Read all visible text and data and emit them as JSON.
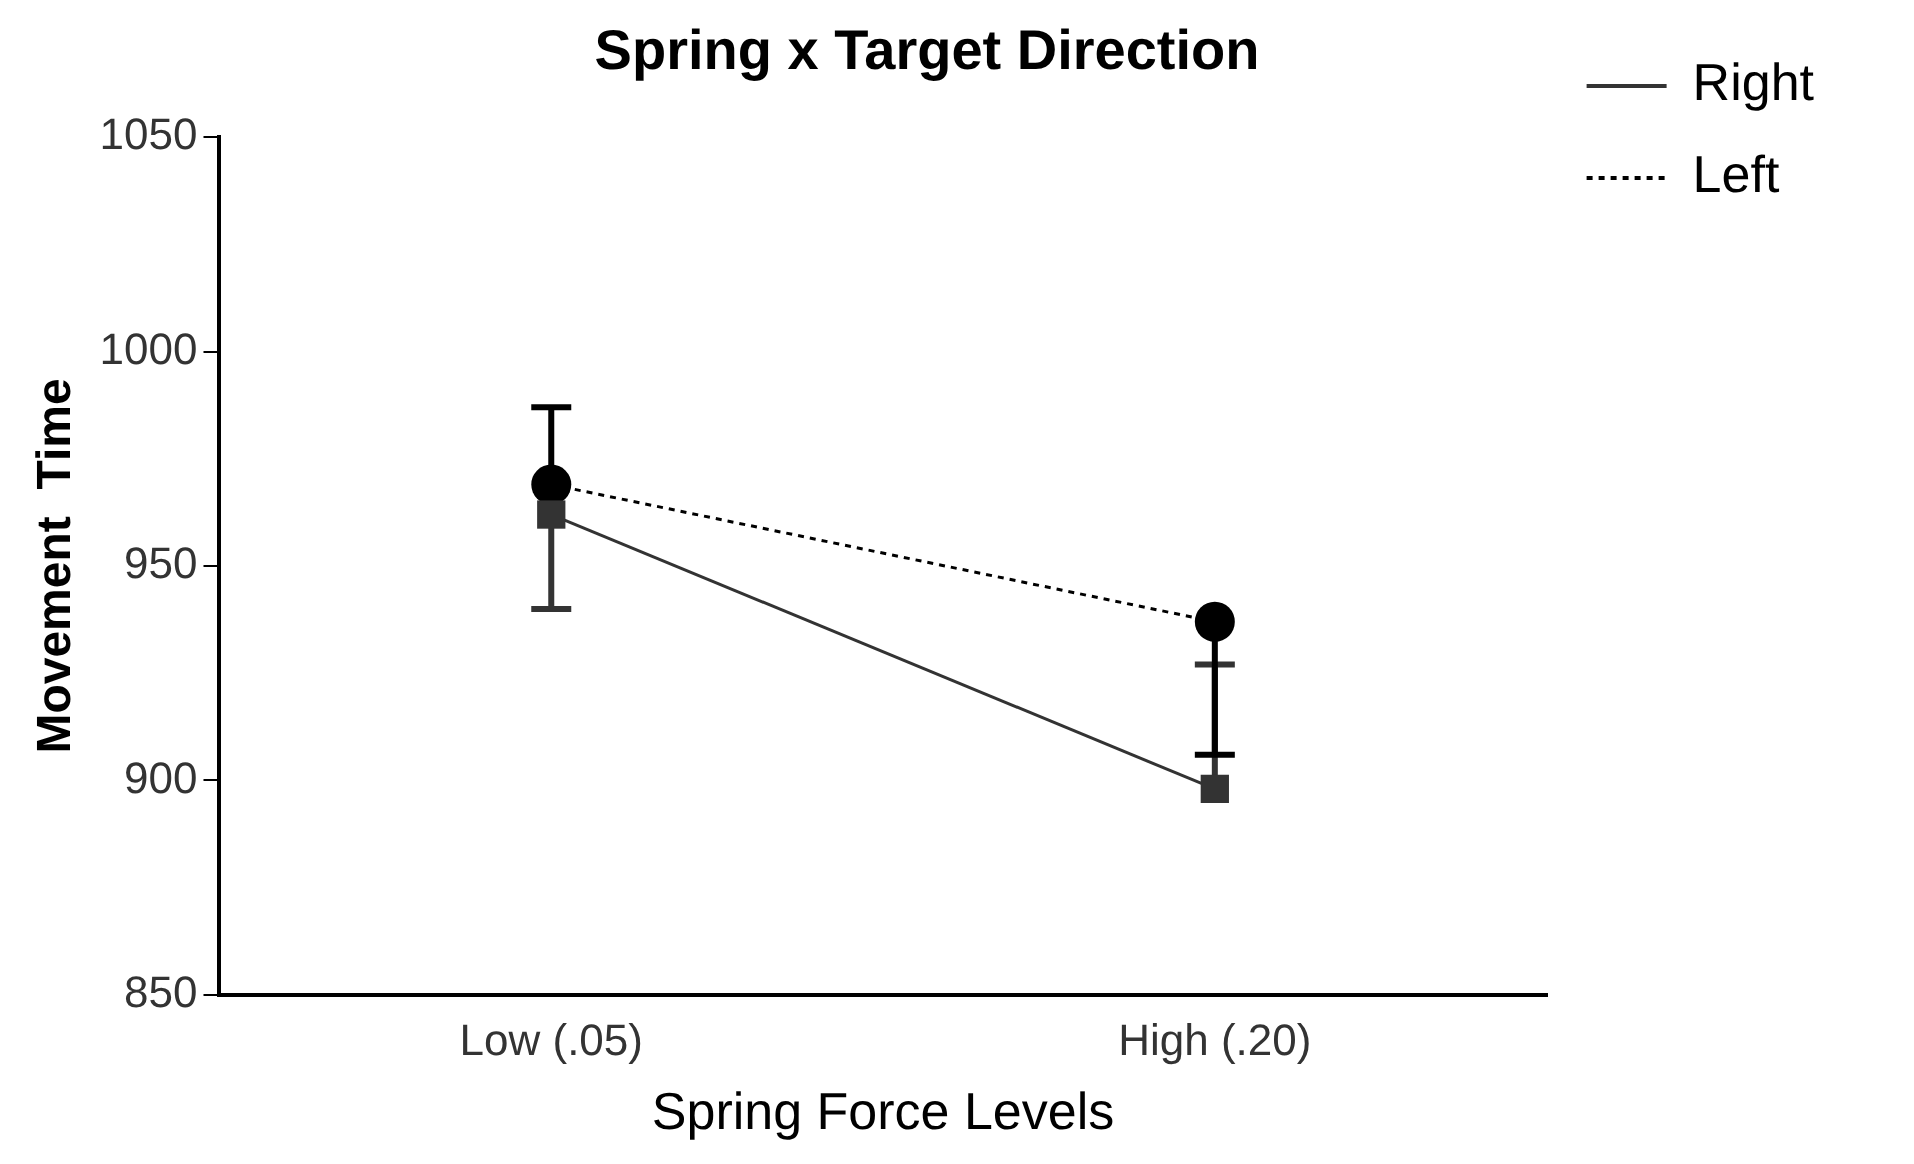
{
  "chart_data": {
    "type": "line",
    "title": "Spring x Target Direction",
    "xlabel": "Spring Force Levels",
    "ylabel": "Movement  Time",
    "categories": [
      "Low (.05)",
      "High (.20)"
    ],
    "series": [
      {
        "name": "Right",
        "color": "#333333",
        "values": [
          962,
          898
        ],
        "errors": [
          [
            940,
            962
          ],
          [
            898,
            927
          ]
        ],
        "marker": "square",
        "line_style": "solid"
      },
      {
        "name": "Left",
        "color": "#000000",
        "values": [
          969,
          937
        ],
        "errors": [
          [
            969,
            987
          ],
          [
            906,
            937
          ]
        ],
        "marker": "circle",
        "line_style": "dotted"
      }
    ],
    "ylim": [
      850,
      1050
    ],
    "yticks": [
      850,
      900,
      950,
      1000,
      1050
    ],
    "grid": false,
    "legend": "top right"
  }
}
